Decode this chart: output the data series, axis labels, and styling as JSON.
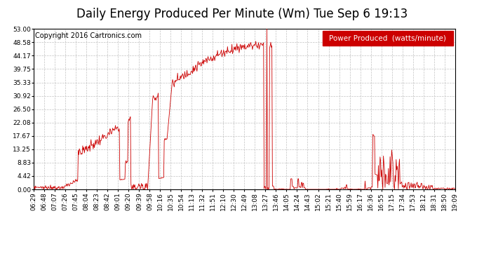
{
  "title": "Daily Energy Produced Per Minute (Wm) Tue Sep 6 19:13",
  "copyright": "Copyright 2016 Cartronics.com",
  "legend_label": "Power Produced  (watts/minute)",
  "legend_bg": "#cc0000",
  "legend_fg": "#ffffff",
  "line_color": "#cc0000",
  "bg_color": "#ffffff",
  "plot_bg": "#ffffff",
  "grid_color": "#bbbbbb",
  "y_max": 53.0,
  "y_min": 0.0,
  "y_ticks": [
    0.0,
    4.42,
    8.83,
    13.25,
    17.67,
    22.08,
    26.5,
    30.92,
    35.33,
    39.75,
    44.17,
    48.58,
    53.0
  ],
  "x_tick_labels": [
    "06:29",
    "06:48",
    "07:07",
    "07:26",
    "07:45",
    "08:04",
    "08:23",
    "08:42",
    "09:01",
    "09:20",
    "09:39",
    "09:58",
    "10:16",
    "10:35",
    "10:54",
    "11:13",
    "11:32",
    "11:51",
    "12:10",
    "12:30",
    "12:49",
    "13:08",
    "13:27",
    "13:46",
    "14:05",
    "14:24",
    "14:43",
    "15:02",
    "15:21",
    "15:40",
    "15:59",
    "16:17",
    "16:36",
    "16:55",
    "17:15",
    "17:34",
    "17:53",
    "18:12",
    "18:31",
    "18:50",
    "19:09"
  ],
  "title_fontsize": 12,
  "copyright_fontsize": 7,
  "tick_fontsize": 6.5,
  "legend_fontsize": 7.5
}
